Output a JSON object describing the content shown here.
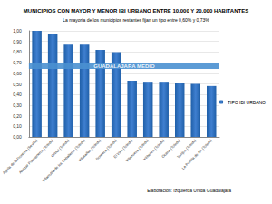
{
  "chart_data": {
    "type": "bar",
    "title": "MUNICIPIOS CON MAYOR Y MENOR IBI URBANO ENTRE 10.000 Y 20.000 HABITANTES",
    "subtitle": "La mayoría de los municipios restantes fijan un tipo entre 0,60% y 0,73%",
    "source": "Elaboración: Izquierda Unida Guadalajara",
    "categories": [
      "Aguila de la Frontera (Sevilla)",
      "Alcázar Pucelaneros (Toledo)",
      "Orinet (Toledo)",
      "Villarrubia de los Caballeros (Toledo)",
      "Villacañas (Toledo)",
      "Sonseca (Toledo)",
      "El Viso (Toledo)",
      "Villanueva (Toledo)",
      "Yébenes (Toledo)",
      "Ocaña (Toledo)",
      "Torrijos (Toledo)",
      "La Puebla de Alc (Toledo)"
    ],
    "series": [
      {
        "name": "TIPO IBI URBANO",
        "color": "#1f5fa8",
        "values": [
          1.0,
          0.97,
          0.87,
          0.87,
          0.82,
          0.8,
          0.53,
          0.52,
          0.52,
          0.51,
          0.5,
          0.48
        ]
      }
    ],
    "reference": {
      "value": 0.67,
      "label": "GUADALAJARA MEDIO",
      "color": "#4a90d0"
    },
    "ylim": [
      0,
      1.0
    ],
    "yticks": [
      {
        "value": 0,
        "label": "0,00"
      },
      {
        "value": 0.1,
        "label": "0,10"
      },
      {
        "value": 0.2,
        "label": "0,20"
      },
      {
        "value": 0.3,
        "label": "0,30"
      },
      {
        "value": 0.4,
        "label": "0,40"
      },
      {
        "value": 0.5,
        "label": "0,50"
      },
      {
        "value": 0.6,
        "label": "0,60"
      },
      {
        "value": 0.7,
        "label": "0,70"
      },
      {
        "value": 0.8,
        "label": "0,80"
      },
      {
        "value": 0.9,
        "label": "0,90"
      },
      {
        "value": 1.0,
        "label": "1,00"
      }
    ],
    "grid": true,
    "legend": "right"
  }
}
